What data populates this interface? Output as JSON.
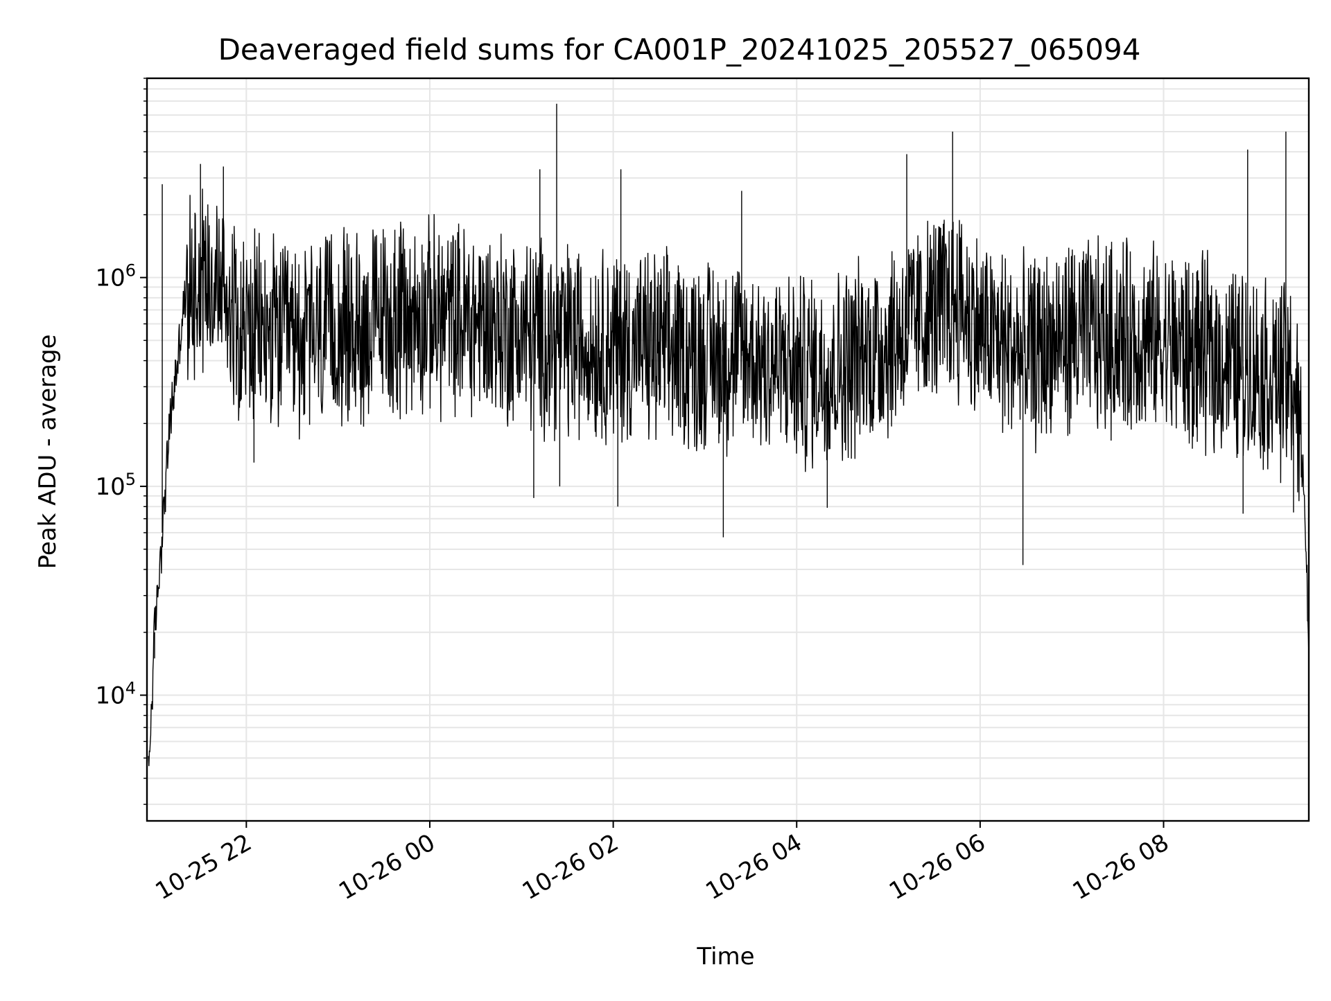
{
  "chart_data": {
    "type": "line",
    "title": "Deaveraged field sums for CA001P_20241025_205527_065094",
    "xlabel": "Time",
    "ylabel": "Peak ADU - average",
    "x_axis_type": "time",
    "x_range": [
      "2024-10-25T20:55",
      "2024-10-26T09:35"
    ],
    "x_ticks": [
      {
        "label": "10-25 22",
        "time": "2024-10-25T22:00"
      },
      {
        "label": "10-26 00",
        "time": "2024-10-26T00:00"
      },
      {
        "label": "10-26 02",
        "time": "2024-10-26T02:00"
      },
      {
        "label": "10-26 04",
        "time": "2024-10-26T04:00"
      },
      {
        "label": "10-26 06",
        "time": "2024-10-26T06:00"
      },
      {
        "label": "10-26 08",
        "time": "2024-10-26T08:00"
      }
    ],
    "y_scale": "log",
    "ylim": [
      2500,
      9000000
    ],
    "y_ticks": [
      {
        "base": "10",
        "exp": "4",
        "value": 10000
      },
      {
        "base": "10",
        "exp": "5",
        "value": 100000
      },
      {
        "base": "10",
        "exp": "6",
        "value": 1000000
      }
    ],
    "grid": true,
    "line_color": "#000000",
    "grid_color": "#e6e6e6",
    "series": [
      {
        "x": [
          "2024-10-25T20:56",
          "2024-10-25T21:00",
          "2024-10-25T21:05",
          "2024-10-25T21:10",
          "2024-10-25T21:15",
          "2024-10-25T21:20",
          "2024-10-25T21:30",
          "2024-10-25T21:45",
          "2024-10-25T22:00",
          "2024-10-25T22:30",
          "2024-10-25T23:00",
          "2024-10-25T23:30",
          "2024-10-26T00:00",
          "2024-10-26T00:30",
          "2024-10-26T01:00",
          "2024-10-26T01:30",
          "2024-10-26T02:00",
          "2024-10-26T02:30",
          "2024-10-26T03:00",
          "2024-10-26T03:30",
          "2024-10-26T04:00",
          "2024-10-26T04:30",
          "2024-10-26T05:00",
          "2024-10-26T05:30",
          "2024-10-26T05:45",
          "2024-10-26T06:00",
          "2024-10-26T06:30",
          "2024-10-26T07:00",
          "2024-10-26T07:30",
          "2024-10-26T08:00",
          "2024-10-26T08:30",
          "2024-10-26T09:00",
          "2024-10-26T09:15",
          "2024-10-26T09:25",
          "2024-10-26T09:32",
          "2024-10-26T09:35"
        ],
        "values": [
          4000,
          20000,
          60000,
          200000,
          400000,
          800000,
          1100000,
          900000,
          550000,
          500000,
          550000,
          620000,
          650000,
          620000,
          550000,
          500000,
          480000,
          450000,
          430000,
          420000,
          350000,
          380000,
          500000,
          700000,
          800000,
          550000,
          420000,
          520000,
          520000,
          480000,
          420000,
          360000,
          330000,
          320000,
          100000,
          16000
        ]
      }
    ],
    "spikes": [
      {
        "time": "2024-10-25T21:00",
        "value": 15000
      },
      {
        "time": "2024-10-25T21:05",
        "value": 2800000
      },
      {
        "time": "2024-10-25T21:30",
        "value": 3500000
      },
      {
        "time": "2024-10-25T21:45",
        "value": 3400000
      },
      {
        "time": "2024-10-25T22:05",
        "value": 130000
      },
      {
        "time": "2024-10-26T01:08",
        "value": 88000
      },
      {
        "time": "2024-10-26T01:12",
        "value": 3300000
      },
      {
        "time": "2024-10-26T01:25",
        "value": 100000
      },
      {
        "time": "2024-10-26T01:23",
        "value": 6800000
      },
      {
        "time": "2024-10-26T02:03",
        "value": 80000
      },
      {
        "time": "2024-10-26T02:05",
        "value": 3300000
      },
      {
        "time": "2024-10-26T03:12",
        "value": 57000
      },
      {
        "time": "2024-10-26T03:24",
        "value": 2600000
      },
      {
        "time": "2024-10-26T04:20",
        "value": 79000
      },
      {
        "time": "2024-10-26T05:12",
        "value": 3900000
      },
      {
        "time": "2024-10-26T05:42",
        "value": 5000000
      },
      {
        "time": "2024-10-26T06:28",
        "value": 42000
      },
      {
        "time": "2024-10-26T08:52",
        "value": 74000
      },
      {
        "time": "2024-10-26T08:55",
        "value": 4100000
      },
      {
        "time": "2024-10-26T09:20",
        "value": 5000000
      },
      {
        "time": "2024-10-26T09:25",
        "value": 75000
      }
    ]
  }
}
